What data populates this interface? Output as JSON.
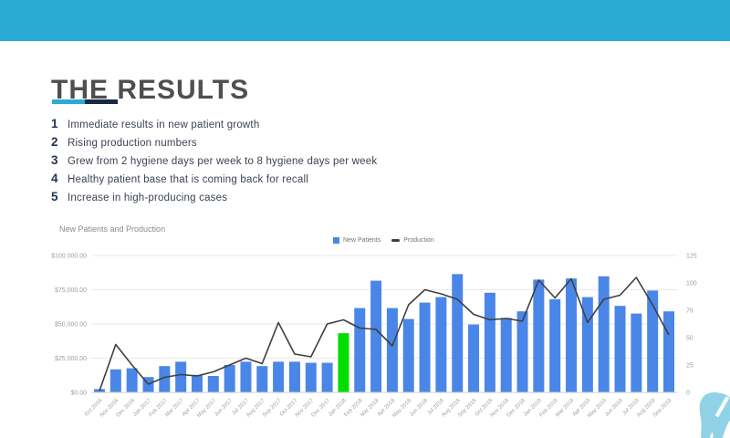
{
  "slide": {
    "title": "THE RESULTS",
    "list_items": [
      {
        "num": "1",
        "text": "Immediate results in new patient growth"
      },
      {
        "num": "2",
        "text": "Rising production numbers"
      },
      {
        "num": "3",
        "text": "Grew from 2 hygiene days per week to 8 hygiene days per week"
      },
      {
        "num": "4",
        "text": "Healthy patient base that is coming back for recall"
      },
      {
        "num": "5",
        "text": "Increase in high-producing cases"
      }
    ]
  },
  "theme": {
    "accent_cyan": "#29abd6",
    "accent_navy": "#182a42",
    "bar_blue": "#4a86e8",
    "highlight_green": "#00dd00",
    "line_dark": "#3f3f3f",
    "axis_text_gray": "#9aa0a6",
    "logo_light_blue": "#90d3e7"
  },
  "chart_data": {
    "type": "bar",
    "title": "New Patients and Production",
    "legend_position": "top-right",
    "grid": true,
    "categories": [
      "Oct 2016",
      "Nov 2016",
      "Dec 2016",
      "Jan 2017",
      "Feb 2017",
      "Mar 2017",
      "Apr 2017",
      "May 2017",
      "Jun 2017",
      "Jul 2017",
      "Aug 2017",
      "Sep 2017",
      "Oct 2017",
      "Nov 2017",
      "Dec 2017",
      "Jan 2018",
      "Feb 2018",
      "Mar 2018",
      "Apr 2018",
      "May 2018",
      "Jun 2018",
      "Jul 2018",
      "Aug 2018",
      "Sep 2018",
      "Oct 2018",
      "Nov 2018",
      "Dec 2018",
      "Jan 2019",
      "Feb 2019",
      "Mar 2019",
      "Apr 2019",
      "May 2019",
      "Jun 2019",
      "Jul 2019",
      "Aug 2019",
      "Sep 2019"
    ],
    "series": [
      {
        "name": "New Patients",
        "type": "bar",
        "axis": "right",
        "color": "#4a86e8",
        "highlight_index": 15,
        "highlight_color": "#00dd00",
        "values": [
          3,
          21,
          22,
          14,
          24,
          28,
          16,
          15,
          25,
          28,
          24,
          28,
          28,
          27,
          27,
          54,
          77,
          102,
          77,
          67,
          82,
          87,
          108,
          62,
          91,
          68,
          74,
          103,
          85,
          104,
          87,
          106,
          79,
          72,
          93,
          74
        ]
      },
      {
        "name": "Production",
        "type": "line",
        "axis": "left",
        "color": "#3f3f3f",
        "values": [
          1000,
          35000,
          20000,
          6000,
          11000,
          13000,
          12000,
          15000,
          20000,
          25000,
          21000,
          51000,
          28000,
          26000,
          50000,
          53000,
          47000,
          46000,
          34000,
          64000,
          75000,
          72000,
          68000,
          57000,
          53000,
          54000,
          52000,
          82000,
          69000,
          83000,
          51000,
          68000,
          71000,
          84000,
          64000,
          42000
        ]
      }
    ],
    "left_axis": {
      "min": 0,
      "max": 100000,
      "tick_labels": [
        "$100,000.00",
        "$75,000.00",
        "$50,000.00",
        "$25,000.00",
        "$0.00"
      ]
    },
    "right_axis": {
      "min": 0,
      "max": 125,
      "tick_labels": [
        "125",
        "100",
        "75",
        "50",
        "25",
        "0"
      ]
    }
  }
}
